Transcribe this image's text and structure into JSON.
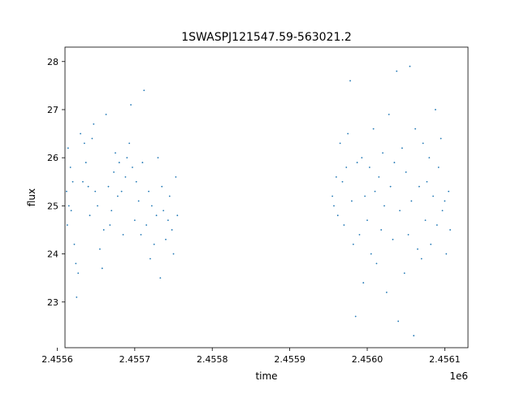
{
  "chart_data": {
    "type": "scatter",
    "title": "1SWASPJ121547.59-563021.2",
    "xlabel": "time",
    "ylabel": "flux",
    "x_offset_label": "1e6",
    "xlim": [
      2.45561,
      2.45613
    ],
    "ylim": [
      22.05,
      28.3
    ],
    "x_ticks": [
      {
        "value": 2.4556,
        "label": "2.4556"
      },
      {
        "value": 2.4557,
        "label": "2.4557"
      },
      {
        "value": 2.4558,
        "label": "2.4558"
      },
      {
        "value": 2.4559,
        "label": "2.4559"
      },
      {
        "value": 2.456,
        "label": "2.4560"
      },
      {
        "value": 2.4561,
        "label": "2.4561"
      }
    ],
    "y_ticks": [
      {
        "value": 23,
        "label": "23"
      },
      {
        "value": 24,
        "label": "24"
      },
      {
        "value": 25,
        "label": "25"
      },
      {
        "value": 26,
        "label": "26"
      },
      {
        "value": 27,
        "label": "27"
      },
      {
        "value": 28,
        "label": "28"
      }
    ],
    "grid": false,
    "marker_color": "#1f77b4",
    "series": [
      {
        "points": [
          [
            2.455612,
            25.3
          ],
          [
            2.455613,
            24.6
          ],
          [
            2.455614,
            26.2
          ],
          [
            2.455615,
            25.0
          ],
          [
            2.455617,
            25.8
          ],
          [
            2.455618,
            24.9
          ],
          [
            2.45562,
            25.5
          ],
          [
            2.455622,
            24.2
          ],
          [
            2.455624,
            23.8
          ],
          [
            2.455625,
            23.1
          ],
          [
            2.455627,
            23.6
          ],
          [
            2.45563,
            26.5
          ],
          [
            2.455633,
            25.5
          ],
          [
            2.455635,
            26.3
          ],
          [
            2.455637,
            25.9
          ],
          [
            2.45564,
            25.4
          ],
          [
            2.455642,
            24.8
          ],
          [
            2.455645,
            26.4
          ],
          [
            2.455647,
            26.7
          ],
          [
            2.455649,
            25.3
          ],
          [
            2.455652,
            25.0
          ],
          [
            2.455655,
            24.1
          ],
          [
            2.455658,
            23.7
          ],
          [
            2.45566,
            24.5
          ],
          [
            2.455663,
            26.9
          ],
          [
            2.455666,
            25.4
          ],
          [
            2.455668,
            24.6
          ],
          [
            2.45567,
            24.9
          ],
          [
            2.455673,
            25.7
          ],
          [
            2.455675,
            26.1
          ],
          [
            2.455678,
            25.2
          ],
          [
            2.45568,
            25.9
          ],
          [
            2.455683,
            25.3
          ],
          [
            2.455685,
            24.4
          ],
          [
            2.455688,
            25.6
          ],
          [
            2.45569,
            26.0
          ],
          [
            2.455693,
            26.3
          ],
          [
            2.455695,
            27.1
          ],
          [
            2.455697,
            25.8
          ],
          [
            2.4557,
            24.7
          ],
          [
            2.455702,
            25.5
          ],
          [
            2.455705,
            25.1
          ],
          [
            2.455708,
            24.4
          ],
          [
            2.45571,
            25.9
          ],
          [
            2.455712,
            27.4
          ],
          [
            2.455715,
            24.6
          ],
          [
            2.455718,
            25.3
          ],
          [
            2.45572,
            23.9
          ],
          [
            2.455722,
            25.0
          ],
          [
            2.455725,
            24.2
          ],
          [
            2.455728,
            24.8
          ],
          [
            2.45573,
            26.0
          ],
          [
            2.455733,
            23.5
          ],
          [
            2.455735,
            25.4
          ],
          [
            2.455737,
            24.9
          ],
          [
            2.45574,
            24.3
          ],
          [
            2.455743,
            24.7
          ],
          [
            2.455745,
            25.2
          ],
          [
            2.455748,
            24.5
          ],
          [
            2.45575,
            24.0
          ],
          [
            2.455753,
            25.6
          ],
          [
            2.455755,
            24.8
          ],
          [
            2.455955,
            25.2
          ],
          [
            2.455957,
            25.0
          ],
          [
            2.45596,
            25.6
          ],
          [
            2.455962,
            24.8
          ],
          [
            2.455965,
            26.3
          ],
          [
            2.455968,
            25.5
          ],
          [
            2.45597,
            24.6
          ],
          [
            2.455973,
            25.8
          ],
          [
            2.455975,
            26.5
          ],
          [
            2.455978,
            27.6
          ],
          [
            2.45598,
            25.1
          ],
          [
            2.455982,
            24.2
          ],
          [
            2.455985,
            22.7
          ],
          [
            2.455987,
            25.9
          ],
          [
            2.45599,
            24.4
          ],
          [
            2.455993,
            26.0
          ],
          [
            2.455995,
            23.4
          ],
          [
            2.455997,
            25.2
          ],
          [
            2.456,
            24.7
          ],
          [
            2.456003,
            25.8
          ],
          [
            2.456005,
            24.0
          ],
          [
            2.456008,
            26.6
          ],
          [
            2.45601,
            25.3
          ],
          [
            2.456012,
            23.8
          ],
          [
            2.456015,
            25.6
          ],
          [
            2.456018,
            24.5
          ],
          [
            2.45602,
            26.1
          ],
          [
            2.456022,
            25.0
          ],
          [
            2.456025,
            23.2
          ],
          [
            2.456028,
            26.9
          ],
          [
            2.45603,
            25.4
          ],
          [
            2.456033,
            24.3
          ],
          [
            2.456035,
            25.9
          ],
          [
            2.456038,
            27.8
          ],
          [
            2.45604,
            22.6
          ],
          [
            2.456042,
            24.9
          ],
          [
            2.456045,
            26.2
          ],
          [
            2.456048,
            23.6
          ],
          [
            2.45605,
            25.7
          ],
          [
            2.456053,
            24.4
          ],
          [
            2.456055,
            27.9
          ],
          [
            2.456057,
            25.1
          ],
          [
            2.45606,
            22.3
          ],
          [
            2.456062,
            26.6
          ],
          [
            2.456065,
            24.1
          ],
          [
            2.456067,
            25.4
          ],
          [
            2.45607,
            23.9
          ],
          [
            2.456072,
            26.3
          ],
          [
            2.456075,
            24.7
          ],
          [
            2.456077,
            25.5
          ],
          [
            2.45608,
            26.0
          ],
          [
            2.456082,
            24.2
          ],
          [
            2.456085,
            25.2
          ],
          [
            2.456088,
            27.0
          ],
          [
            2.45609,
            24.6
          ],
          [
            2.456092,
            25.8
          ],
          [
            2.456095,
            26.4
          ],
          [
            2.456097,
            24.9
          ],
          [
            2.4561,
            25.1
          ],
          [
            2.456102,
            24.0
          ],
          [
            2.456105,
            25.3
          ],
          [
            2.456107,
            24.5
          ]
        ]
      }
    ]
  }
}
